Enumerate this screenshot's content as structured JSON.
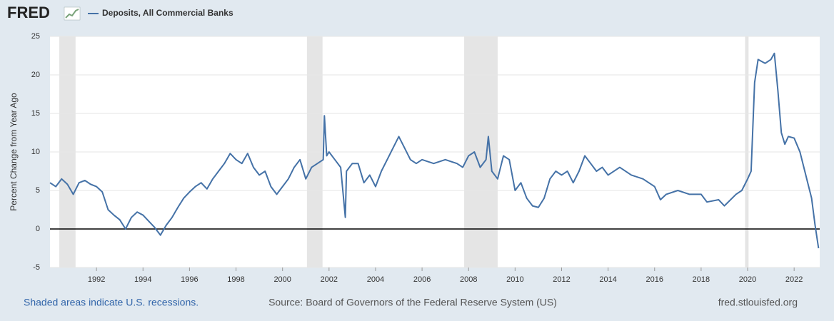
{
  "chart_data": {
    "type": "line",
    "logo": "FRED",
    "y_label": "Percent Change from Year Ago",
    "footer_left": "Shaded areas indicate U.S. recessions.",
    "footer_center": "Source: Board of Governors of the Federal Reserve System (US)",
    "footer_right": "fred.stlouisfed.org",
    "xlim": [
      1990.0,
      2023.1
    ],
    "xticks": [
      1992,
      1994,
      1996,
      1998,
      2000,
      2002,
      2004,
      2006,
      2008,
      2010,
      2012,
      2014,
      2016,
      2018,
      2020,
      2022
    ],
    "ylim": [
      -5,
      25
    ],
    "yticks": [
      -5,
      0,
      5,
      10,
      15,
      20,
      25
    ],
    "grid": true,
    "recessions": [
      [
        1990.4,
        1991.1
      ],
      [
        2001.05,
        2001.72
      ],
      [
        2007.81,
        2009.25
      ],
      [
        2019.89,
        2020.04
      ]
    ],
    "x": [
      1990.0,
      1990.25,
      1990.5,
      1990.75,
      1991.0,
      1991.25,
      1991.5,
      1991.75,
      1992.0,
      1992.25,
      1992.5,
      1992.75,
      1993.0,
      1993.25,
      1993.5,
      1993.75,
      1994.0,
      1994.25,
      1994.5,
      1994.75,
      1995.0,
      1995.25,
      1995.5,
      1995.75,
      1996.0,
      1996.25,
      1996.5,
      1996.75,
      1997.0,
      1997.25,
      1997.5,
      1997.75,
      1998.0,
      1998.25,
      1998.5,
      1998.75,
      1999.0,
      1999.25,
      1999.5,
      1999.75,
      2000.0,
      2000.25,
      2000.5,
      2000.75,
      2001.0,
      2001.25,
      2001.5,
      2001.75,
      2001.8,
      2001.9,
      2002.0,
      2002.25,
      2002.5,
      2002.7,
      2002.75,
      2003.0,
      2003.25,
      2003.5,
      2003.75,
      2004.0,
      2004.25,
      2004.5,
      2004.75,
      2005.0,
      2005.25,
      2005.5,
      2005.75,
      2006.0,
      2006.5,
      2007.0,
      2007.5,
      2007.75,
      2008.0,
      2008.25,
      2008.5,
      2008.75,
      2008.85,
      2009.0,
      2009.25,
      2009.5,
      2009.75,
      2010.0,
      2010.25,
      2010.5,
      2010.75,
      2011.0,
      2011.25,
      2011.5,
      2011.75,
      2012.0,
      2012.25,
      2012.5,
      2012.75,
      2013.0,
      2013.25,
      2013.5,
      2013.75,
      2014.0,
      2014.5,
      2015.0,
      2015.5,
      2016.0,
      2016.25,
      2016.5,
      2017.0,
      2017.5,
      2018.0,
      2018.25,
      2018.75,
      2019.0,
      2019.5,
      2019.75,
      2020.0,
      2020.15,
      2020.3,
      2020.45,
      2020.75,
      2021.0,
      2021.15,
      2021.3,
      2021.45,
      2021.6,
      2021.75,
      2022.0,
      2022.25,
      2022.5,
      2022.75,
      2022.9,
      2023.05
    ],
    "series": [
      {
        "name": "Deposits, All Commercial Banks",
        "color": "#4572a7",
        "values": [
          6.0,
          5.5,
          6.5,
          5.8,
          4.5,
          6.0,
          6.3,
          5.8,
          5.5,
          4.8,
          2.5,
          1.8,
          1.2,
          0.0,
          1.5,
          2.2,
          1.8,
          1.0,
          0.2,
          -0.8,
          0.5,
          1.5,
          2.8,
          4.0,
          4.8,
          5.5,
          6.0,
          5.2,
          6.5,
          7.5,
          8.5,
          9.8,
          9.0,
          8.5,
          9.8,
          8.0,
          7.0,
          7.5,
          5.5,
          4.5,
          5.5,
          6.5,
          8.0,
          9.0,
          6.5,
          8.0,
          8.5,
          9.0,
          14.7,
          9.5,
          10.0,
          9.0,
          8.0,
          1.5,
          7.5,
          8.5,
          8.5,
          6.0,
          7.0,
          5.5,
          7.5,
          9.0,
          10.5,
          12.0,
          10.5,
          9.0,
          8.5,
          9.0,
          8.5,
          9.0,
          8.5,
          8.0,
          9.5,
          10.0,
          8.0,
          9.0,
          12.0,
          7.5,
          6.5,
          9.5,
          9.0,
          5.0,
          6.0,
          4.0,
          3.0,
          2.8,
          4.0,
          6.5,
          7.5,
          7.0,
          7.5,
          6.0,
          7.5,
          9.5,
          8.5,
          7.5,
          8.0,
          7.0,
          8.0,
          7.0,
          6.5,
          5.5,
          3.8,
          4.5,
          5.0,
          4.5,
          4.5,
          3.5,
          3.8,
          3.0,
          4.5,
          5.0,
          6.5,
          7.5,
          19,
          22,
          21.5,
          22.0,
          22.8,
          18,
          12.5,
          11.0,
          12.0,
          11.8,
          10.0,
          7.0,
          4.0,
          0.5,
          -2.5
        ]
      }
    ]
  }
}
